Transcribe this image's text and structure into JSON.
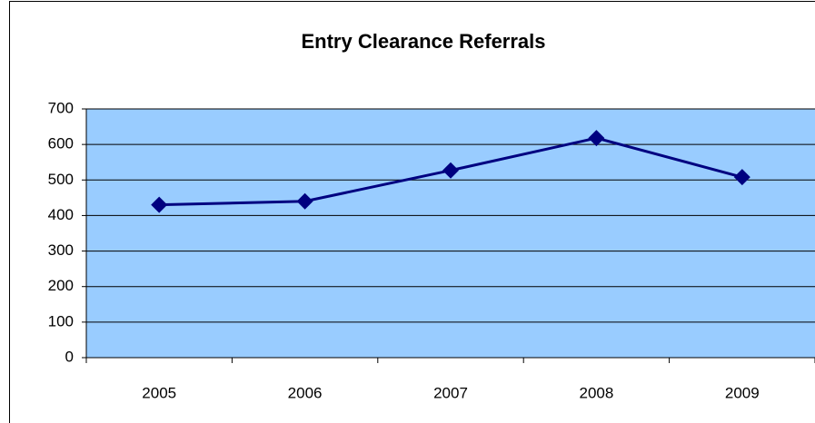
{
  "chart_data": {
    "type": "line",
    "title": "Entry Clearance Referrals",
    "categories": [
      "2005",
      "2006",
      "2007",
      "2008",
      "2009"
    ],
    "values": [
      430,
      440,
      527,
      618,
      508
    ],
    "color": "#000080",
    "ylim": [
      0,
      700
    ],
    "yticks": [
      0,
      100,
      200,
      300,
      400,
      500,
      600,
      700
    ],
    "grid": true,
    "plot_background": "#99ccff"
  }
}
